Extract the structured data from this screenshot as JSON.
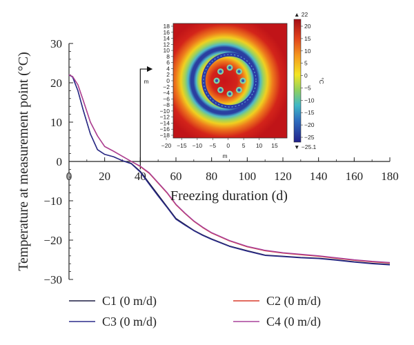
{
  "chart_data": {
    "type": "line",
    "xlabel": "Freezing duration (d)",
    "ylabel": "Temperature at measurement point (°C)",
    "xlim": [
      0,
      180
    ],
    "ylim": [
      -30,
      30
    ],
    "xticks": [
      "0",
      "20",
      "40",
      "60",
      "80",
      "100",
      "120",
      "140",
      "160",
      "180"
    ],
    "yticks": [
      "30",
      "20",
      "10",
      "0",
      "−10",
      "−20",
      "−30"
    ],
    "grid": false,
    "legend_position": "bottom",
    "series": [
      {
        "name": "C1 (0 m/d)",
        "color": "#1a1a40",
        "x": [
          0,
          2,
          5,
          8,
          12,
          16,
          20,
          25,
          30,
          35,
          40,
          45,
          50,
          55,
          60,
          65,
          70,
          75,
          80,
          90,
          100,
          110,
          120,
          130,
          140,
          150,
          160,
          170,
          180
        ],
        "y": [
          22,
          21.5,
          18,
          13,
          7,
          3,
          1.8,
          1.2,
          0.2,
          -0.5,
          -2.5,
          -5.5,
          -8.5,
          -11.5,
          -14.5,
          -16,
          -17.5,
          -18.7,
          -19.7,
          -21.5,
          -22.7,
          -23.8,
          -24.1,
          -24.4,
          -24.6,
          -25,
          -25.5,
          -25.9,
          -26.2
        ]
      },
      {
        "name": "C2 (0 m/d)",
        "color": "#d93a2a",
        "x": [
          0,
          2,
          5,
          8,
          12,
          16,
          20,
          25,
          30,
          35,
          40,
          45,
          50,
          55,
          60,
          65,
          70,
          75,
          80,
          90,
          100,
          110,
          120,
          130,
          140,
          150,
          160,
          170,
          180
        ],
        "y": [
          22,
          21.6,
          19.5,
          15.5,
          10,
          6.5,
          3.8,
          2.6,
          1.3,
          0,
          -1.3,
          -3,
          -5.5,
          -8,
          -11,
          -13.2,
          -15.2,
          -16.8,
          -18.2,
          -20.2,
          -21.7,
          -22.7,
          -23.3,
          -23.7,
          -24.1,
          -24.6,
          -25.1,
          -25.5,
          -25.8
        ]
      },
      {
        "name": "C3 (0 m/d)",
        "color": "#2a2a8a",
        "x": [
          0,
          2,
          5,
          8,
          12,
          16,
          20,
          25,
          30,
          35,
          40,
          45,
          50,
          55,
          60,
          65,
          70,
          75,
          80,
          90,
          100,
          110,
          120,
          130,
          140,
          150,
          160,
          170,
          180
        ],
        "y": [
          22,
          21.5,
          18,
          13,
          7,
          3,
          1.8,
          1.2,
          0.2,
          -0.6,
          -2.7,
          -5.8,
          -8.8,
          -11.7,
          -14.7,
          -16.2,
          -17.6,
          -18.8,
          -19.8,
          -21.6,
          -22.8,
          -23.9,
          -24.2,
          -24.5,
          -24.7,
          -25.1,
          -25.6,
          -26,
          -26.3
        ]
      },
      {
        "name": "C4 (0 m/d)",
        "color": "#a8409a",
        "x": [
          0,
          2,
          5,
          8,
          12,
          16,
          20,
          25,
          30,
          35,
          40,
          45,
          50,
          55,
          60,
          65,
          70,
          75,
          80,
          90,
          100,
          110,
          120,
          130,
          140,
          150,
          160,
          170,
          180
        ],
        "y": [
          22,
          21.6,
          19.5,
          15.5,
          10,
          6.5,
          3.8,
          2.6,
          1.3,
          0,
          -1.2,
          -2.9,
          -5.4,
          -7.9,
          -10.9,
          -13.1,
          -15.1,
          -16.7,
          -18.1,
          -20.1,
          -21.6,
          -22.6,
          -23.2,
          -23.6,
          -24,
          -24.5,
          -25,
          -25.4,
          -25.7
        ]
      }
    ],
    "inset": {
      "type": "heatmap",
      "xlabel": "m",
      "ylabel": "m",
      "xticks": [
        "−20",
        "−15",
        "−10",
        "−5",
        "0",
        "5",
        "10",
        "15"
      ],
      "yticks": [
        "18",
        "16",
        "14",
        "12",
        "10",
        "8",
        "6",
        "4",
        "2",
        "0",
        "−2",
        "−4",
        "−6",
        "−8",
        "−10",
        "−12",
        "−14",
        "−16",
        "−18"
      ],
      "colorbar_unit": "°C",
      "colorbar_max": "▲ 22",
      "colorbar_min": "▼ −25.1",
      "colorbar_ticks": [
        "20",
        "15",
        "10",
        "5",
        "0",
        "−5",
        "−10",
        "−15",
        "−20",
        "−25"
      ],
      "ring_radius_m": 9,
      "pipe_circle_radius_m": 4.5,
      "pipe_count": 8,
      "arrow_from_day": 40
    }
  }
}
